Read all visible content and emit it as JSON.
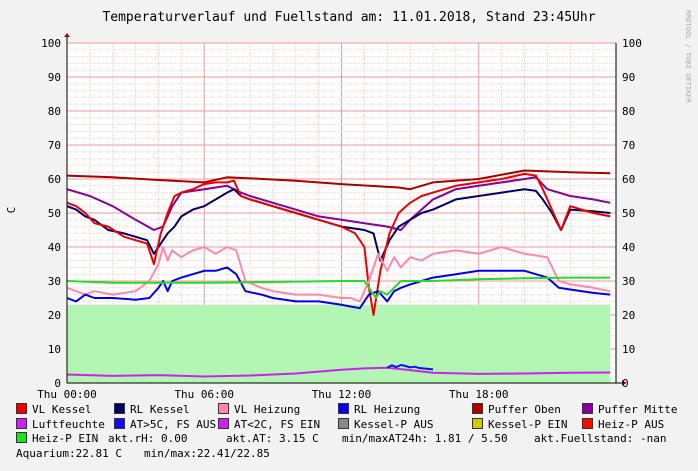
{
  "chart_data": {
    "type": "line",
    "title": "Temperaturverlauf und Fuellstand am: 11.01.2018, Stand 23:45Uhr",
    "watermark": "RRDTOOL / TOBI OETIKER",
    "ylabel": "C",
    "ylim": [
      0,
      100
    ],
    "yticks": [
      "0",
      "10",
      "20",
      "30",
      "40",
      "50",
      "60",
      "70",
      "80",
      "90",
      "100"
    ],
    "xlim": [
      0,
      24
    ],
    "xticks": [
      {
        "t": 0,
        "label": "Thu 00:00"
      },
      {
        "t": 6,
        "label": "Thu 06:00"
      },
      {
        "t": 12,
        "label": "Thu 12:00"
      },
      {
        "t": 18,
        "label": "Thu 18:00"
      }
    ],
    "grid": true,
    "series": [
      {
        "name": "Heiz-P EIN",
        "color": "#b3f5b3",
        "style": "area",
        "t": [
          0,
          23.75
        ],
        "v": [
          23,
          23
        ]
      },
      {
        "name": "Luftfeuchte",
        "color": "#cc22ee",
        "t": [
          0,
          2,
          4,
          6,
          8,
          10,
          12,
          13,
          14,
          15,
          16,
          18,
          20,
          22,
          23.75
        ],
        "v": [
          2.5,
          2.1,
          2.3,
          1.9,
          2.2,
          2.8,
          3.9,
          4.3,
          4.5,
          3.8,
          3.0,
          2.7,
          2.8,
          3.0,
          3.1
        ]
      },
      {
        "name": "AT>5C, FS AUS",
        "color": "#1010ee",
        "t": [
          14,
          14.2,
          14.4,
          14.6,
          14.8,
          15,
          15.2,
          15.4,
          16
        ],
        "v": [
          4.5,
          5.2,
          4.7,
          5.3,
          5.0,
          4.6,
          4.8,
          4.4,
          4.0
        ]
      },
      {
        "name": "Puffer Oben",
        "color": "#aa0000",
        "t": [
          0,
          2,
          4,
          6,
          7,
          8,
          10,
          12,
          14.5,
          15,
          16,
          18,
          20,
          22,
          23.75
        ],
        "v": [
          61,
          60.5,
          59.7,
          59,
          60.5,
          60.2,
          59.5,
          58.5,
          57.5,
          57,
          59,
          60,
          62.5,
          62,
          61.7
        ]
      },
      {
        "name": "Puffer Mitte",
        "color": "#880099",
        "t": [
          0,
          1,
          2,
          3,
          3.8,
          4.2,
          4.6,
          5,
          6,
          7,
          7.6,
          8,
          9,
          10,
          11,
          12,
          13,
          14,
          14.6,
          15,
          16,
          17,
          18,
          19,
          20,
          20.5,
          21,
          22,
          23,
          23.75
        ],
        "v": [
          57,
          55,
          52,
          48,
          45,
          46,
          52,
          56,
          57,
          58,
          56,
          55,
          53,
          51,
          49,
          48,
          47,
          46,
          45,
          48,
          54,
          57,
          58,
          59,
          60,
          60.5,
          57,
          55,
          54,
          53
        ]
      },
      {
        "name": "RL Kessel",
        "color": "#000066",
        "t": [
          0,
          0.4,
          0.8,
          1.2,
          1.8,
          2.5,
          3,
          3.5,
          3.8,
          4.1,
          4.4,
          4.7,
          5,
          5.5,
          6,
          6.5,
          7,
          7.3,
          7.6,
          8,
          9,
          10,
          11,
          12,
          13,
          13.4,
          13.7,
          14.1,
          14.5,
          15,
          15.5,
          16,
          17,
          18,
          19,
          20,
          20.5,
          20.8,
          21.2,
          21.6,
          22,
          23,
          23.75
        ],
        "v": [
          52,
          51,
          49,
          48,
          45,
          44,
          43,
          42,
          38,
          41,
          44,
          46,
          49,
          51,
          52,
          54,
          56,
          57,
          55,
          54,
          52,
          50,
          48,
          46,
          45,
          44,
          36,
          42,
          46,
          48,
          50,
          51,
          54,
          55,
          56,
          57,
          56.5,
          54,
          50,
          45,
          51,
          50.5,
          50
        ]
      },
      {
        "name": "VL Kessel",
        "color": "#ee0000",
        "t": [
          0,
          0.4,
          0.8,
          1.2,
          1.8,
          2.5,
          3,
          3.5,
          3.8,
          4.1,
          4.4,
          4.7,
          5,
          5.5,
          6,
          6.5,
          7,
          7.3,
          7.6,
          8,
          9,
          10,
          11,
          12,
          12.6,
          13,
          13.2,
          13.4,
          13.7,
          14.1,
          14.5,
          15,
          15.5,
          16,
          17,
          18,
          19,
          20,
          20.5,
          20.8,
          21.2,
          21.6,
          22,
          23,
          23.75
        ],
        "v": [
          53,
          52,
          50,
          47,
          46,
          43,
          42,
          41,
          35,
          44,
          50,
          55,
          56,
          57,
          58.5,
          59,
          59,
          59.5,
          55,
          54,
          52,
          50,
          48,
          46,
          44,
          40,
          28,
          20,
          33,
          44,
          50,
          53,
          55,
          56,
          58,
          59,
          60,
          61.5,
          61,
          57,
          51,
          45,
          52,
          50,
          49
        ]
      },
      {
        "name": "VL Heizung",
        "color": "#ff88aa",
        "t": [
          0,
          0.4,
          0.8,
          1.2,
          2,
          3,
          3.6,
          4,
          4.2,
          4.4,
          4.6,
          5,
          5.5,
          6,
          6.5,
          7,
          7.4,
          7.8,
          8.5,
          9,
          10,
          11,
          12,
          12.4,
          12.8,
          13.2,
          13.6,
          14,
          14.3,
          14.6,
          15,
          15.5,
          16,
          17,
          18,
          19,
          20,
          21,
          21.5,
          22,
          23,
          23.75
        ],
        "v": [
          28,
          27,
          26,
          27,
          26,
          27,
          30,
          35,
          40,
          36,
          39,
          37,
          39,
          40,
          38,
          40,
          39,
          30,
          28,
          27,
          26,
          26,
          25,
          25,
          24,
          30,
          38,
          33,
          37,
          34,
          37,
          36,
          38,
          39,
          38,
          40,
          38,
          37,
          30,
          29,
          28,
          27
        ]
      },
      {
        "name": "RL Heizung",
        "color": "#0000ee",
        "t": [
          0,
          0.4,
          0.8,
          1.2,
          2,
          3,
          3.6,
          4,
          4.2,
          4.4,
          4.6,
          5,
          5.5,
          6,
          6.5,
          7,
          7.4,
          7.8,
          8.5,
          9,
          10,
          11,
          12,
          12.4,
          12.8,
          13.2,
          13.6,
          14,
          14.3,
          14.6,
          15,
          15.5,
          16,
          17,
          18,
          19,
          20,
          21,
          21.5,
          22,
          23,
          23.75
        ],
        "v": [
          25,
          24,
          26,
          25,
          25,
          24.5,
          25,
          28,
          30,
          27,
          30,
          31,
          32,
          33,
          33,
          34,
          32,
          27,
          26,
          25,
          24,
          24,
          23,
          22.5,
          22,
          26,
          27,
          24,
          27,
          28,
          29,
          30,
          31,
          32,
          33,
          33,
          33,
          31,
          28,
          27.5,
          26.5,
          26
        ]
      },
      {
        "name": "Heiz-P EIN",
        "color": "#22dd22",
        "t": [
          0,
          2,
          4,
          6,
          8,
          10,
          12,
          13,
          13.2,
          13.5,
          13.7,
          14,
          14.3,
          14.6,
          15,
          16,
          18,
          20,
          22,
          23.75
        ],
        "v": [
          30,
          29.5,
          29.5,
          29.5,
          29.6,
          29.8,
          30,
          30,
          28,
          25,
          27,
          26,
          28,
          30,
          30,
          30,
          30.5,
          30.8,
          31,
          31
        ]
      }
    ],
    "legend": [
      {
        "name": "VL Kessel",
        "color": "#ee0000"
      },
      {
        "name": "RL Kessel",
        "color": "#000066"
      },
      {
        "name": "VL Heizung",
        "color": "#ff88aa"
      },
      {
        "name": "RL Heizung",
        "color": "#0000ee"
      },
      {
        "name": "Puffer Oben",
        "color": "#aa0000"
      },
      {
        "name": "Puffer Mitte",
        "color": "#880099"
      },
      {
        "name": "Luftfeuchte",
        "color": "#cc22ee"
      },
      {
        "name": "AT>5C, FS AUS",
        "color": "#1010ee"
      },
      {
        "name": "AT<2C, FS EIN",
        "color": "#cc22ee"
      },
      {
        "name": "Kessel-P AUS",
        "color": "#888888"
      },
      {
        "name": "Kessel-P EIN",
        "color": "#cccc00"
      },
      {
        "name": "Heiz-P AUS",
        "color": "#ee1100"
      },
      {
        "name": "Heiz-P EIN",
        "color": "#22dd22"
      }
    ],
    "stats": {
      "rh": "akt.rH: 0.00",
      "at": "akt.AT: 3.15 C",
      "minmax24": "min/maxAT24h: 1.81 / 5.50",
      "fuell": "akt.Fuellstand: -nan",
      "aquarium": "Aquarium:22.81 C",
      "aqminmax": "min/max:22.41/22.85"
    }
  }
}
